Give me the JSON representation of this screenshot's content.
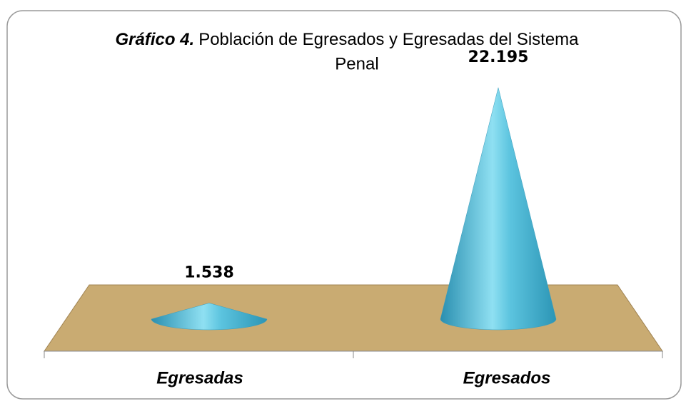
{
  "chart_data": {
    "type": "cone",
    "title": {
      "lead": "Gráfico 4.",
      "text": "Población de Egresados y Egresadas del Sistema",
      "line2": "Penal"
    },
    "categories": [
      "Egresadas",
      "Egresados"
    ],
    "values": [
      1538,
      22195
    ],
    "value_labels": [
      "1.538",
      "22.195"
    ],
    "color": "#4fb8d6"
  }
}
